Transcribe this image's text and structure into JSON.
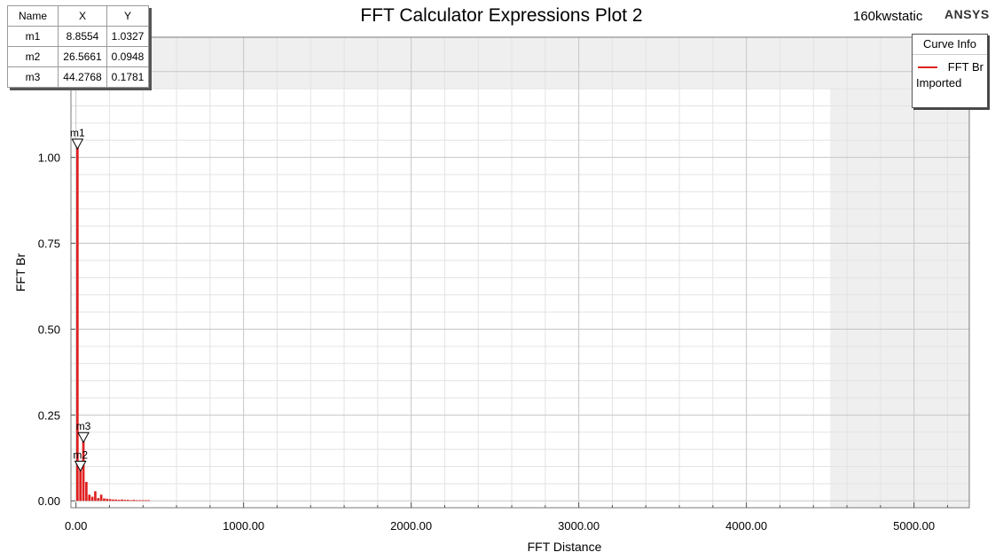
{
  "header": {
    "title": "FFT Calculator Expressions Plot 2",
    "design_name": "160kwstatic",
    "brand": "ANSYS"
  },
  "marker_table": {
    "headers": [
      "Name",
      "X",
      "Y"
    ],
    "rows": [
      {
        "name": "m1",
        "x": "8.8554",
        "y": "1.0327"
      },
      {
        "name": "m2",
        "x": "26.5661",
        "y": "0.0948"
      },
      {
        "name": "m3",
        "x": "44.2768",
        "y": "0.1781"
      }
    ]
  },
  "legend": {
    "title": "Curve Info",
    "entry_name": "FFT Br",
    "entry_source": "Imported",
    "color": "#e02020"
  },
  "chart_data": {
    "type": "bar",
    "title": "FFT Calculator Expressions Plot 2",
    "xlabel": "FFT Distance",
    "ylabel": "FFT Br",
    "xlim": [
      -30,
      5330
    ],
    "ylim": [
      -0.02,
      1.35
    ],
    "x_ticks": [
      0,
      1000,
      2000,
      3000,
      4000,
      5000
    ],
    "x_tick_labels": [
      "0.00",
      "1000.00",
      "2000.00",
      "3000.00",
      "4000.00",
      "5000.00"
    ],
    "y_ticks": [
      0,
      0.25,
      0.5,
      0.75,
      1.0,
      1.25
    ],
    "y_tick_labels": [
      "0.00",
      "0.25",
      "0.50",
      "0.75",
      "1.00",
      "1.25"
    ],
    "grid": true,
    "series": [
      {
        "name": "FFT Br",
        "color": "#e02020",
        "x": [
          8.8554,
          26.5661,
          44.2768,
          61.9875,
          79.6982,
          97.4089,
          115.12,
          132.83,
          150.54,
          168.25,
          185.96,
          203.67,
          221.38,
          239.09,
          256.8,
          274.51,
          292.22,
          309.93,
          327.64,
          345.35,
          363.06,
          380.77,
          398.48,
          416.19,
          433.9
        ],
        "values": [
          1.0327,
          0.0948,
          0.1781,
          0.055,
          0.018,
          0.012,
          0.028,
          0.008,
          0.018,
          0.007,
          0.006,
          0.005,
          0.004,
          0.004,
          0.003,
          0.004,
          0.003,
          0.003,
          0.002,
          0.003,
          0.002,
          0.002,
          0.002,
          0.002,
          0.002
        ]
      }
    ],
    "markers": [
      {
        "name": "m1",
        "x": 8.8554,
        "y": 1.0327
      },
      {
        "name": "m2",
        "x": 26.5661,
        "y": 0.0948
      },
      {
        "name": "m3",
        "x": 44.2768,
        "y": 0.1781
      }
    ],
    "shaded_regions": [
      {
        "x_from": 4500,
        "x_to": 5330,
        "y_from": -0.02,
        "y_to": 1.35
      },
      {
        "x_from": -30,
        "x_to": 5330,
        "y_from": 1.2,
        "y_to": 1.35
      }
    ]
  }
}
